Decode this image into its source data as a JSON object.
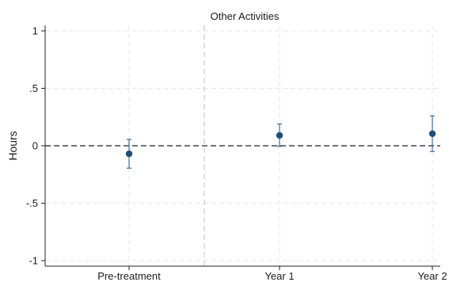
{
  "chart_data": {
    "type": "scatter",
    "title": "Other Activities",
    "xlabel": "",
    "ylabel": "Hours",
    "categories": [
      "Pre-treatment",
      "Year 1",
      "Year 2"
    ],
    "y_ticks": [
      "1",
      ".5",
      "0",
      "-.5",
      "-1"
    ],
    "y_tick_values": [
      1,
      0.5,
      0,
      -0.5,
      -1
    ],
    "ylim": [
      -1.05,
      1.05
    ],
    "grid": true,
    "reference_line_y": 0,
    "vertical_reference_between": [
      "Pre-treatment",
      "Year 1"
    ],
    "series": [
      {
        "estimates": [
          -0.07,
          0.09,
          0.105
        ],
        "ci_lower": [
          -0.195,
          -0.005,
          -0.05
        ],
        "ci_upper": [
          0.055,
          0.19,
          0.26
        ]
      }
    ],
    "colors": {
      "marker": "#1f4e79",
      "ci": "#3a6c9a",
      "grid": "#e6e6e6",
      "zero_line": "#3d4650",
      "axis": "#222222",
      "vline": "#c8c8c8"
    }
  }
}
